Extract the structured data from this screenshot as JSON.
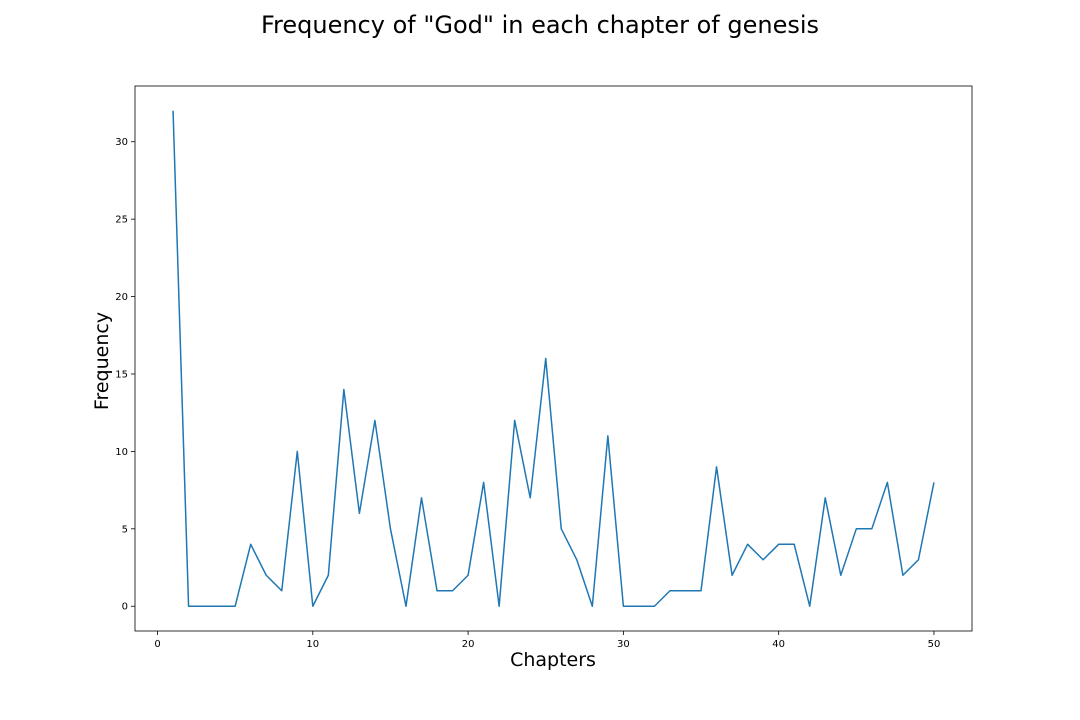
{
  "chart_data": {
    "type": "line",
    "title": "Frequency of \"God\" in each chapter of genesis",
    "xlabel": "Chapters",
    "ylabel": "Frequency",
    "xlim": [
      -1.45,
      52.45
    ],
    "ylim": [
      -1.6,
      33.6
    ],
    "xticks": [
      0,
      10,
      20,
      30,
      40,
      50
    ],
    "yticks": [
      0,
      5,
      10,
      15,
      20,
      25,
      30
    ],
    "grid": false,
    "series": [
      {
        "color": "#1f77b4",
        "x": [
          1,
          2,
          3,
          4,
          5,
          6,
          7,
          8,
          9,
          10,
          11,
          12,
          13,
          14,
          15,
          16,
          17,
          18,
          19,
          20,
          21,
          22,
          23,
          24,
          25,
          26,
          27,
          28,
          29,
          30,
          31,
          32,
          33,
          34,
          35,
          36,
          37,
          38,
          39,
          40,
          41,
          42,
          43,
          44,
          45,
          46,
          47,
          48,
          49,
          50
        ],
        "values": [
          32,
          0,
          0,
          0,
          0,
          4,
          2,
          1,
          10,
          0,
          2,
          14,
          6,
          12,
          5,
          0,
          7,
          1,
          1,
          2,
          8,
          0,
          12,
          7,
          16,
          5,
          3,
          0,
          11,
          0,
          0,
          0,
          1,
          1,
          1,
          9,
          2,
          4,
          3,
          4,
          4,
          0,
          7,
          2,
          5,
          5,
          8,
          2,
          3,
          8
        ]
      }
    ]
  }
}
